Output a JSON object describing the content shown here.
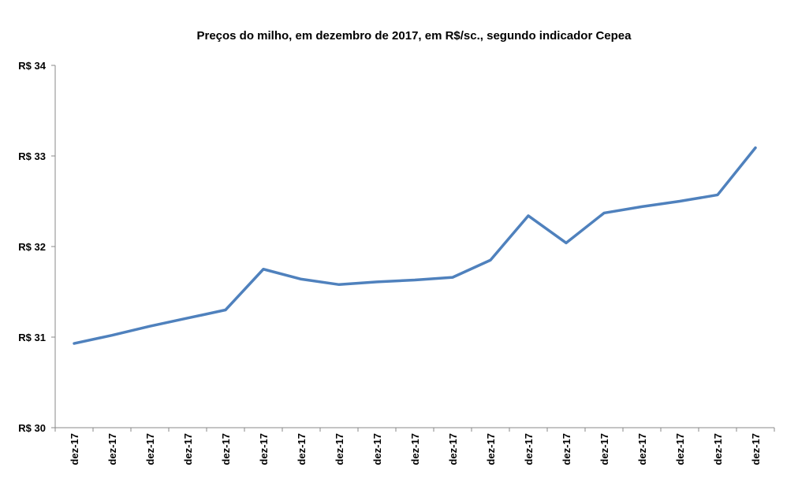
{
  "chart_data": {
    "type": "line",
    "title": "Preços do milho, em dezembro de 2017, em R$/sc.,  segundo indicador Cepea",
    "xlabel": "",
    "ylabel": "",
    "ylim": [
      30,
      34
    ],
    "yticks": [
      30,
      31,
      32,
      33,
      34
    ],
    "ytick_labels": [
      "R$ 30",
      "R$ 31",
      "R$ 32",
      "R$ 33",
      "R$ 34"
    ],
    "categories": [
      "dez-17",
      "dez-17",
      "dez-17",
      "dez-17",
      "dez-17",
      "dez-17",
      "dez-17",
      "dez-17",
      "dez-17",
      "dez-17",
      "dez-17",
      "dez-17",
      "dez-17",
      "dez-17",
      "dez-17",
      "dez-17",
      "dez-17",
      "dez-17",
      "dez-17"
    ],
    "grid": false,
    "series": [
      {
        "name": "Indicador Cepea",
        "color": "#4f81bd",
        "values": [
          30.93,
          31.02,
          31.12,
          31.21,
          31.3,
          31.75,
          31.64,
          31.58,
          31.61,
          31.63,
          31.66,
          31.85,
          32.34,
          32.04,
          32.37,
          32.44,
          32.5,
          32.57,
          33.09
        ]
      }
    ]
  }
}
